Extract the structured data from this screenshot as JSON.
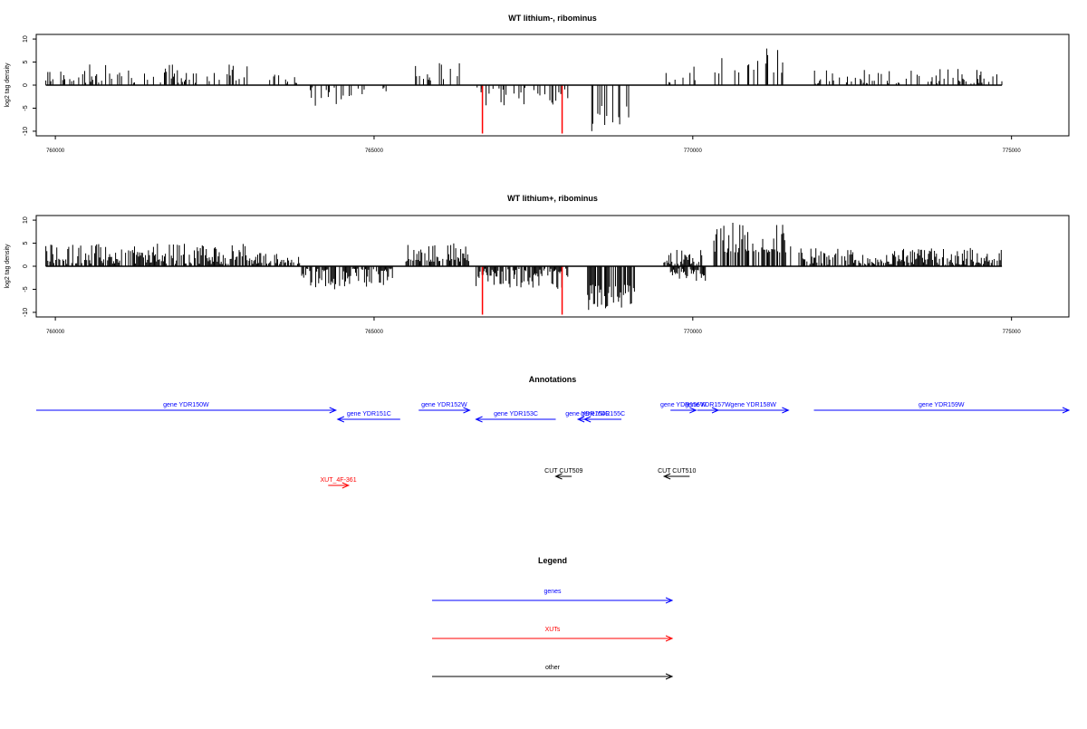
{
  "chart_data": [
    {
      "type": "bar",
      "title": "WT lithium-, ribominus",
      "ylabel": "log2 tag density",
      "xlim": [
        759700,
        775900
      ],
      "ylim": [
        -11,
        11
      ],
      "data_xrange": [
        759850,
        774850
      ],
      "xticks": [
        760000,
        765000,
        770000,
        775000
      ],
      "yticks": [
        10,
        5,
        0,
        -5,
        -10
      ],
      "xtick_labels": [
        "760000",
        "765000",
        "770000",
        "775000"
      ],
      "ytick_labels": [
        "10",
        "5",
        "0",
        "-5",
        "-10"
      ],
      "grid": false,
      "bar_color": "#000000",
      "highlight_color": "#ff0000",
      "density": 0.32,
      "seed": 11,
      "regions": [
        {
          "x": [
            759850,
            763050
          ],
          "dir": "up",
          "min": 0.5,
          "max": 4.5
        },
        {
          "x": [
            763300,
            763900
          ],
          "dir": "up",
          "min": 0.3,
          "max": 2.5
        },
        {
          "x": [
            764000,
            765200
          ],
          "dir": "down",
          "min": 0.5,
          "max": 4.5
        },
        {
          "x": [
            765650,
            766450
          ],
          "dir": "up",
          "min": 1.0,
          "max": 5.0
        },
        {
          "x": [
            766600,
            768050
          ],
          "dir": "down",
          "min": 0.5,
          "max": 4.5
        },
        {
          "x": [
            768400,
            769000
          ],
          "dir": "down",
          "min": 4.5,
          "max": 10.0
        },
        {
          "x": [
            769550,
            770050
          ],
          "dir": "up",
          "min": 0.5,
          "max": 4.0
        },
        {
          "x": [
            770300,
            771500
          ],
          "dir": "up",
          "min": 2.5,
          "max": 9.0
        },
        {
          "x": [
            771800,
            774850
          ],
          "dir": "up",
          "min": 0.3,
          "max": 3.5
        }
      ],
      "highlight_bars": [
        {
          "x": 766700,
          "value": -10.5
        },
        {
          "x": 767950,
          "value": -10.5
        }
      ]
    },
    {
      "type": "bar",
      "title": "WT lithium+, ribominus",
      "ylabel": "log2 tag density",
      "xlim": [
        759700,
        775900
      ],
      "ylim": [
        -11,
        11
      ],
      "data_xrange": [
        759850,
        774850
      ],
      "xticks": [
        760000,
        765000,
        770000,
        775000
      ],
      "yticks": [
        10,
        5,
        0,
        -5,
        -10
      ],
      "xtick_labels": [
        "760000",
        "765000",
        "770000",
        "775000"
      ],
      "ytick_labels": [
        "10",
        "5",
        "0",
        "-5",
        "-10"
      ],
      "grid": false,
      "bar_color": "#000000",
      "highlight_color": "#ff0000",
      "density": 0.75,
      "seed": 29,
      "regions": [
        {
          "x": [
            759850,
            763050
          ],
          "dir": "up",
          "min": 0.5,
          "max": 5.0
        },
        {
          "x": [
            763050,
            763850
          ],
          "dir": "up",
          "min": 0.5,
          "max": 3.0
        },
        {
          "x": [
            763850,
            765300
          ],
          "dir": "down",
          "min": 0.5,
          "max": 5.0
        },
        {
          "x": [
            765500,
            766500
          ],
          "dir": "up",
          "min": 1.0,
          "max": 5.0
        },
        {
          "x": [
            766600,
            768050
          ],
          "dir": "down",
          "min": 0.5,
          "max": 5.0
        },
        {
          "x": [
            768350,
            769100
          ],
          "dir": "down",
          "min": 4.0,
          "max": 10.0
        },
        {
          "x": [
            769500,
            770150
          ],
          "dir": "up",
          "min": 0.5,
          "max": 4.0
        },
        {
          "x": [
            769650,
            770200
          ],
          "dir": "down",
          "min": 0.5,
          "max": 3.5
        },
        {
          "x": [
            770300,
            771550
          ],
          "dir": "up",
          "min": 3.0,
          "max": 9.5
        },
        {
          "x": [
            771650,
            774850
          ],
          "dir": "up",
          "min": 0.3,
          "max": 4.0
        }
      ],
      "highlight_bars": [
        {
          "x": 766700,
          "value": -10.5
        },
        {
          "x": 767950,
          "value": -10.5
        }
      ]
    }
  ],
  "annotations": {
    "title": "Annotations",
    "xlim": [
      759700,
      775900
    ],
    "genes": [
      {
        "label": "gene YDR150W",
        "start": 759700,
        "end": 764400,
        "strand": "+",
        "row": 0,
        "color": "#0000ff"
      },
      {
        "label": "gene YDR151C",
        "start": 764430,
        "end": 765410,
        "strand": "-",
        "row": 1,
        "color": "#0000ff"
      },
      {
        "label": "gene YDR152W",
        "start": 765700,
        "end": 766500,
        "strand": "+",
        "row": 0,
        "color": "#0000ff"
      },
      {
        "label": "gene YDR153C",
        "start": 766600,
        "end": 767850,
        "strand": "-",
        "row": 1,
        "color": "#0000ff"
      },
      {
        "label": "gene YDR154C",
        "start": 768200,
        "end": 768500,
        "strand": "-",
        "row": 1,
        "color": "#0000ff"
      },
      {
        "label": "gene YDR155C",
        "start": 768300,
        "end": 768880,
        "strand": "-",
        "row": 1,
        "color": "#0000ff"
      },
      {
        "label": "gene YDR156W",
        "start": 769650,
        "end": 770050,
        "strand": "+",
        "row": 0,
        "color": "#0000ff"
      },
      {
        "label": "gene YDR157W",
        "start": 770070,
        "end": 770400,
        "strand": "+",
        "row": 0,
        "color": "#0000ff"
      },
      {
        "label": "gene YDR158W",
        "start": 770400,
        "end": 771500,
        "strand": "+",
        "row": 0,
        "color": "#0000ff"
      },
      {
        "label": "gene YDR159W",
        "start": 771900,
        "end": 775900,
        "strand": "+",
        "row": 0,
        "color": "#0000ff"
      }
    ],
    "xuts": [
      {
        "label": "XUT_4F-361",
        "start": 764280,
        "end": 764600,
        "strand": "+",
        "color": "#ff0000"
      }
    ],
    "other": [
      {
        "label": "CUT CUT509",
        "start": 767850,
        "end": 768100,
        "strand": "-",
        "color": "#000000"
      },
      {
        "label": "CUT CUT510",
        "start": 769550,
        "end": 769950,
        "strand": "-",
        "color": "#000000"
      }
    ]
  },
  "legend": {
    "title": "Legend",
    "items": [
      {
        "label": "genes",
        "color": "#0000ff"
      },
      {
        "label": "XUTs",
        "color": "#ff0000"
      },
      {
        "label": "other",
        "color": "#000000"
      }
    ]
  }
}
